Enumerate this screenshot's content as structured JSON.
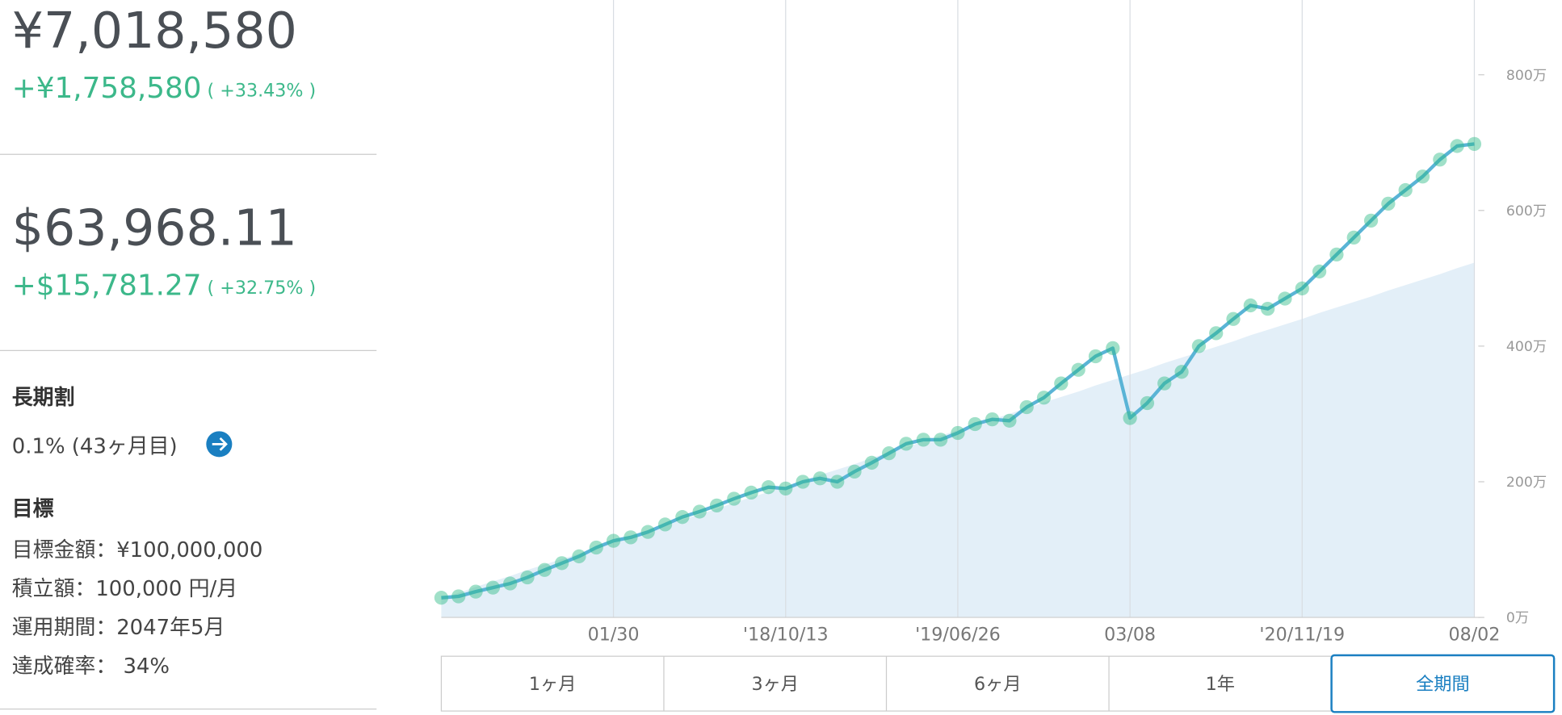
{
  "summary": {
    "jpy": {
      "total": "¥7,018,580",
      "gain": "+¥1,758,580",
      "rate": "( +33.43% )"
    },
    "usd": {
      "total": "$63,968.11",
      "gain": "+$15,781.27",
      "rate": "( +32.75% )"
    }
  },
  "discount": {
    "title": "長期割",
    "text": "0.1% (43ヶ月目)"
  },
  "goal": {
    "title": "目標",
    "lines": [
      "目標金額：¥100,000,000",
      "積立額：100,000 円/月",
      "運用期間：2047年5月",
      "達成確率： 34%"
    ]
  },
  "periods": {
    "options": [
      "1ヶ月",
      "3ヶ月",
      "6ヶ月",
      "1年",
      "全期間"
    ],
    "selected": 4
  },
  "chart_data": {
    "type": "line",
    "categories": [
      null,
      null,
      null,
      null,
      null,
      null,
      null,
      null,
      null,
      null,
      "01/30",
      null,
      null,
      null,
      null,
      null,
      null,
      null,
      null,
      null,
      "'18/10/13",
      null,
      null,
      null,
      null,
      null,
      null,
      null,
      null,
      null,
      "'19/06/26",
      null,
      null,
      null,
      null,
      null,
      null,
      null,
      null,
      null,
      "03/08",
      null,
      null,
      null,
      null,
      null,
      null,
      null,
      null,
      null,
      "'20/11/19",
      null,
      null,
      null,
      null,
      null,
      null,
      null,
      null,
      null,
      "08/02"
    ],
    "series": [
      {
        "type": "area",
        "color": "#e3eff8",
        "values": [
          28,
          36,
          45,
          53,
          61,
          70,
          78,
          86,
          94,
          103,
          111,
          119,
          127,
          136,
          144,
          152,
          160,
          169,
          177,
          185,
          193,
          202,
          210,
          218,
          226,
          235,
          243,
          251,
          259,
          268,
          276,
          284,
          292,
          300,
          309,
          317,
          325,
          333,
          342,
          350,
          358,
          366,
          375,
          383,
          391,
          399,
          407,
          416,
          424,
          432,
          440,
          449,
          457,
          465,
          473,
          482,
          490,
          498,
          506,
          515,
          523
        ]
      },
      {
        "type": "line",
        "color": "#5ab4d6",
        "marker_color": "#2dbb84",
        "markers": true,
        "values": [
          29,
          31,
          38,
          44,
          50,
          59,
          70,
          80,
          90,
          103,
          113,
          118,
          126,
          137,
          148,
          156,
          165,
          175,
          184,
          192,
          190,
          200,
          205,
          200,
          215,
          228,
          242,
          256,
          262,
          262,
          272,
          285,
          292,
          290,
          310,
          324,
          345,
          365,
          385,
          397,
          294,
          316,
          345,
          362,
          400,
          419,
          440,
          460,
          455,
          470,
          485,
          510,
          535,
          560,
          585,
          610,
          630,
          650,
          675,
          695,
          698
        ]
      }
    ],
    "ylim": [
      0,
      900
    ],
    "yticks": [
      {
        "value": 0,
        "label": "0万"
      },
      {
        "value": 200,
        "label": "200万"
      },
      {
        "value": 400,
        "label": "400万"
      },
      {
        "value": 600,
        "label": "600万"
      },
      {
        "value": 800,
        "label": "800万"
      }
    ],
    "grid": true
  }
}
